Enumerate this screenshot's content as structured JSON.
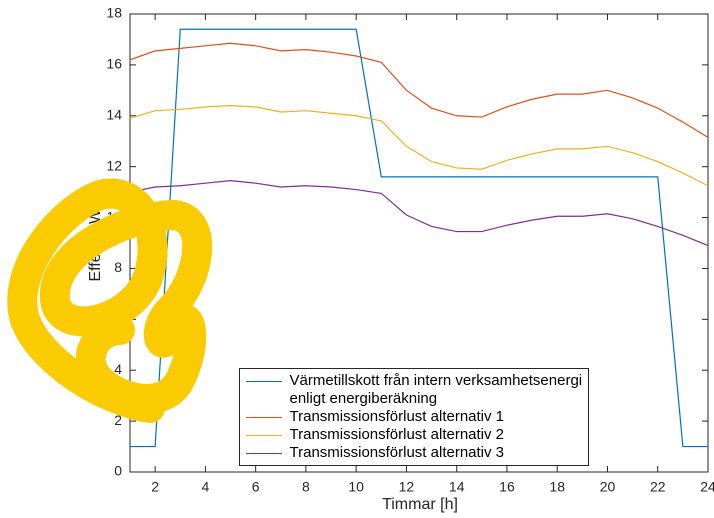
{
  "chart_data": {
    "type": "line",
    "xlabel": "Timmar [h]",
    "ylabel": "Effekt [kW]",
    "x": [
      1,
      2,
      3,
      4,
      5,
      6,
      7,
      8,
      9,
      10,
      11,
      12,
      13,
      14,
      15,
      16,
      17,
      18,
      19,
      20,
      21,
      22,
      23,
      24
    ],
    "series": [
      {
        "name": "Värmetillskott från intern verksamhetsenergi\nenligt energiberäkning",
        "color": "#0072BD",
        "values": [
          1,
          1,
          17.4,
          17.4,
          17.4,
          17.4,
          17.4,
          17.4,
          17.4,
          17.4,
          11.6,
          11.6,
          11.6,
          11.6,
          11.6,
          11.6,
          11.6,
          11.6,
          11.6,
          11.6,
          11.6,
          11.6,
          1,
          1
        ]
      },
      {
        "name": "Transmissionsförlust alternativ 1",
        "color": "#D95319",
        "values": [
          16.2,
          16.55,
          16.65,
          16.75,
          16.85,
          16.75,
          16.55,
          16.6,
          16.5,
          16.35,
          16.1,
          15.0,
          14.3,
          14.0,
          13.95,
          14.35,
          14.65,
          14.85,
          14.85,
          15.0,
          14.7,
          14.3,
          13.75,
          13.15
        ]
      },
      {
        "name": "Transmissionsförlust alternativ 2",
        "color": "#EDB120",
        "values": [
          13.9,
          14.2,
          14.25,
          14.35,
          14.4,
          14.35,
          14.15,
          14.2,
          14.1,
          14.0,
          13.8,
          12.8,
          12.2,
          11.95,
          11.9,
          12.25,
          12.5,
          12.7,
          12.7,
          12.8,
          12.55,
          12.2,
          11.75,
          11.25
        ]
      },
      {
        "name": "Transmissionsförlust alternativ 3",
        "color": "#7E2F8E",
        "values": [
          11.0,
          11.2,
          11.25,
          11.35,
          11.45,
          11.35,
          11.2,
          11.25,
          11.2,
          11.1,
          10.95,
          10.1,
          9.65,
          9.45,
          9.45,
          9.7,
          9.9,
          10.05,
          10.05,
          10.15,
          9.95,
          9.65,
          9.3,
          8.9
        ]
      }
    ],
    "xlim": [
      1,
      24
    ],
    "xticks": [
      2,
      4,
      6,
      8,
      10,
      12,
      14,
      16,
      18,
      20,
      22,
      24
    ],
    "ylim": [
      0,
      18
    ],
    "yticks": [
      0,
      2,
      4,
      6,
      8,
      10,
      12,
      14,
      16,
      18
    ],
    "grid": false,
    "legend": "south"
  }
}
